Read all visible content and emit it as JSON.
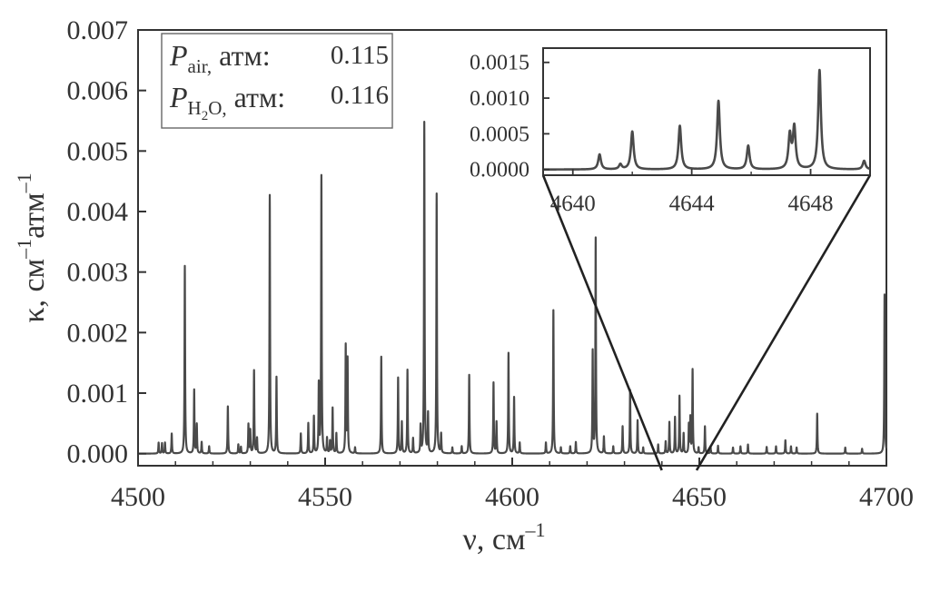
{
  "chart_data": [
    {
      "type": "line",
      "xlabel": "ν, см",
      "xlabel_sup": "–1",
      "ylabel_parts": [
        "κ, см",
        "–1",
        "атм",
        "–1"
      ],
      "xlim": [
        4500,
        4700
      ],
      "ylim": [
        -0.0002,
        0.007
      ],
      "xticks": [
        4500,
        4550,
        4600,
        4650,
        4700
      ],
      "xtick_labels": [
        "4500",
        "4550",
        "4600",
        "4650",
        "4700"
      ],
      "yticks": [
        0,
        0.001,
        0.002,
        0.003,
        0.004,
        0.005,
        0.006,
        0.007
      ],
      "ytick_labels": [
        "0.000",
        "0.001",
        "0.002",
        "0.003",
        "0.004",
        "0.005",
        "0.006",
        "0.007"
      ],
      "grid": false,
      "annotation": {
        "rows": [
          {
            "symbol": "P",
            "sub": "air,",
            "unit": " атм:",
            "value": "0.115"
          },
          {
            "symbol": "P",
            "sub": "H",
            "sub2": "2",
            "sub3": "O,",
            "unit": " атм:",
            "value": "0.116"
          }
        ]
      },
      "series": [
        {
          "peaks": [
            [
              4505.5,
              0.00018
            ],
            [
              4506.4,
              0.00017
            ],
            [
              4507.2,
              0.00018
            ],
            [
              4509,
              0.00033
            ],
            [
              4512.5,
              0.0031
            ],
            [
              4515,
              0.00105
            ],
            [
              4515.7,
              0.00048
            ],
            [
              4517,
              0.00019
            ],
            [
              4519,
              0.00012
            ],
            [
              4524,
              0.00078
            ],
            [
              4526.8,
              0.00015
            ],
            [
              4527.5,
              0.00011
            ],
            [
              4529.5,
              0.00048
            ],
            [
              4530,
              0.00038
            ],
            [
              4531,
              0.00137
            ],
            [
              4531.8,
              0.00025
            ],
            [
              4535.2,
              0.00427
            ],
            [
              4537,
              0.00126
            ],
            [
              4543.5,
              0.00033
            ],
            [
              4545.5,
              0.0005
            ],
            [
              4547,
              0.00061
            ],
            [
              4548.3,
              0.00113
            ],
            [
              4549,
              0.00458
            ],
            [
              4550.5,
              0.00025
            ],
            [
              4551.3,
              0.0002
            ],
            [
              4552,
              0.00075
            ],
            [
              4553,
              0.00033
            ],
            [
              4555.5,
              0.00177
            ],
            [
              4556,
              0.00155
            ],
            [
              4558,
              0.0001
            ],
            [
              4565,
              0.0016
            ],
            [
              4569.5,
              0.00125
            ],
            [
              4570.5,
              0.00052
            ],
            [
              4572,
              0.00138
            ],
            [
              4573.5,
              0.00025
            ],
            [
              4575.5,
              0.00045
            ],
            [
              4576.5,
              0.00547
            ],
            [
              4577.5,
              0.00065
            ],
            [
              4579.8,
              0.00429
            ],
            [
              4581,
              0.00032
            ],
            [
              4584,
              0.0001
            ],
            [
              4586.5,
              0.00012
            ],
            [
              4588.5,
              0.0013
            ],
            [
              4595,
              0.00117
            ],
            [
              4595.8,
              0.00052
            ],
            [
              4599,
              0.00166
            ],
            [
              4600.5,
              0.00093
            ],
            [
              4602,
              0.00018
            ],
            [
              4609,
              0.00018
            ],
            [
              4611,
              0.00237
            ],
            [
              4613,
              0.0001
            ],
            [
              4615.5,
              0.00012
            ],
            [
              4617,
              0.00019
            ],
            [
              4621.5,
              0.00168
            ],
            [
              4622.3,
              0.00355
            ],
            [
              4624.5,
              0.00028
            ],
            [
              4627,
              0.00012
            ],
            [
              4629.5,
              0.00045
            ],
            [
              4631.5,
              0.00105
            ],
            [
              4633.5,
              0.00055
            ],
            [
              4635,
              0.0001
            ],
            [
              4639,
              0.00015
            ],
            [
              4641,
              0.0002
            ],
            [
              4642,
              0.00052
            ],
            [
              4643.5,
              0.0006
            ],
            [
              4644.7,
              0.00095
            ],
            [
              4645.8,
              0.00033
            ],
            [
              4647.2,
              0.00047
            ],
            [
              4647.6,
              0.00058
            ],
            [
              4648.2,
              0.00138
            ],
            [
              4649.8,
              0.0001
            ],
            [
              4651.5,
              0.00045
            ],
            [
              4653,
              0.00012
            ],
            [
              4655,
              0.00013
            ],
            [
              4659,
              0.0001
            ],
            [
              4661,
              0.00012
            ],
            [
              4663,
              0.00015
            ],
            [
              4668,
              0.00011
            ],
            [
              4670.5,
              0.00012
            ],
            [
              4673,
              0.00022
            ],
            [
              4674.5,
              0.00012
            ],
            [
              4676,
              0.0001
            ],
            [
              4681.5,
              0.00066
            ],
            [
              4689,
              0.0001
            ],
            [
              4693.5,
              8e-05
            ],
            [
              4699.5,
              0.00263
            ]
          ]
        }
      ]
    },
    {
      "type": "line",
      "xlim": [
        4639,
        4650
      ],
      "ylim": [
        -8e-05,
        0.0017
      ],
      "xticks": [
        4640,
        4644,
        4648
      ],
      "xtick_labels": [
        "4640",
        "4644",
        "4648"
      ],
      "yticks": [
        0,
        0.0005,
        0.001,
        0.0015
      ],
      "ytick_labels": [
        "0.0000",
        "0.0005",
        "0.0010",
        "0.0015"
      ],
      "grid": false,
      "series": [
        {
          "peaks": [
            [
              4640.9,
              0.00021
            ],
            [
              4641.6,
              7e-05
            ],
            [
              4642.0,
              0.00053
            ],
            [
              4643.6,
              0.00061
            ],
            [
              4644.9,
              0.00096
            ],
            [
              4645.9,
              0.00033
            ],
            [
              4647.3,
              0.00047
            ],
            [
              4647.45,
              0.00058
            ],
            [
              4648.3,
              0.00139
            ],
            [
              4649.8,
              0.00012
            ]
          ]
        }
      ]
    }
  ]
}
